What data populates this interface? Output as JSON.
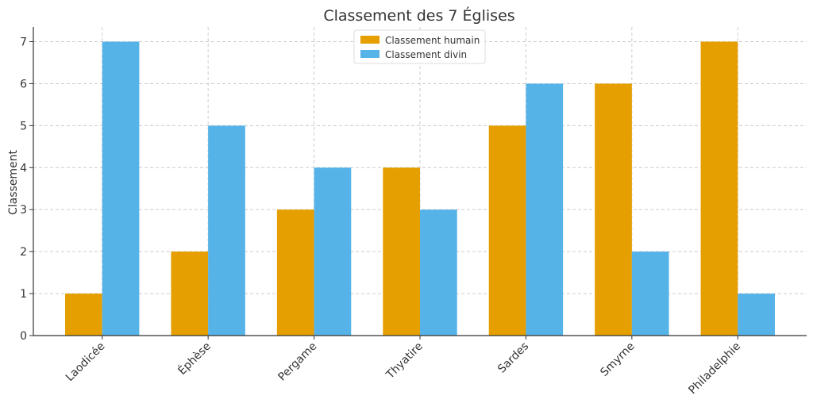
{
  "chart_data": {
    "type": "bar",
    "title": "Classement des 7 Églises",
    "xlabel": "",
    "ylabel": "Classement",
    "categories": [
      "Laodicée",
      "Éphèse",
      "Pergame",
      "Thyatire",
      "Sardes",
      "Smyrne",
      "Philadelphie"
    ],
    "series": [
      {
        "name": "Classement humain",
        "values": [
          1,
          2,
          3,
          4,
          5,
          6,
          7
        ],
        "color": "#E59F00"
      },
      {
        "name": "Classement divin",
        "values": [
          7,
          5,
          4,
          3,
          6,
          2,
          1
        ],
        "color": "#56B3E8"
      }
    ],
    "ylim": [
      0,
      7.35
    ],
    "yticks": [
      0,
      1,
      2,
      3,
      4,
      5,
      6,
      7
    ],
    "grid": true,
    "legend_position": "top-center"
  }
}
